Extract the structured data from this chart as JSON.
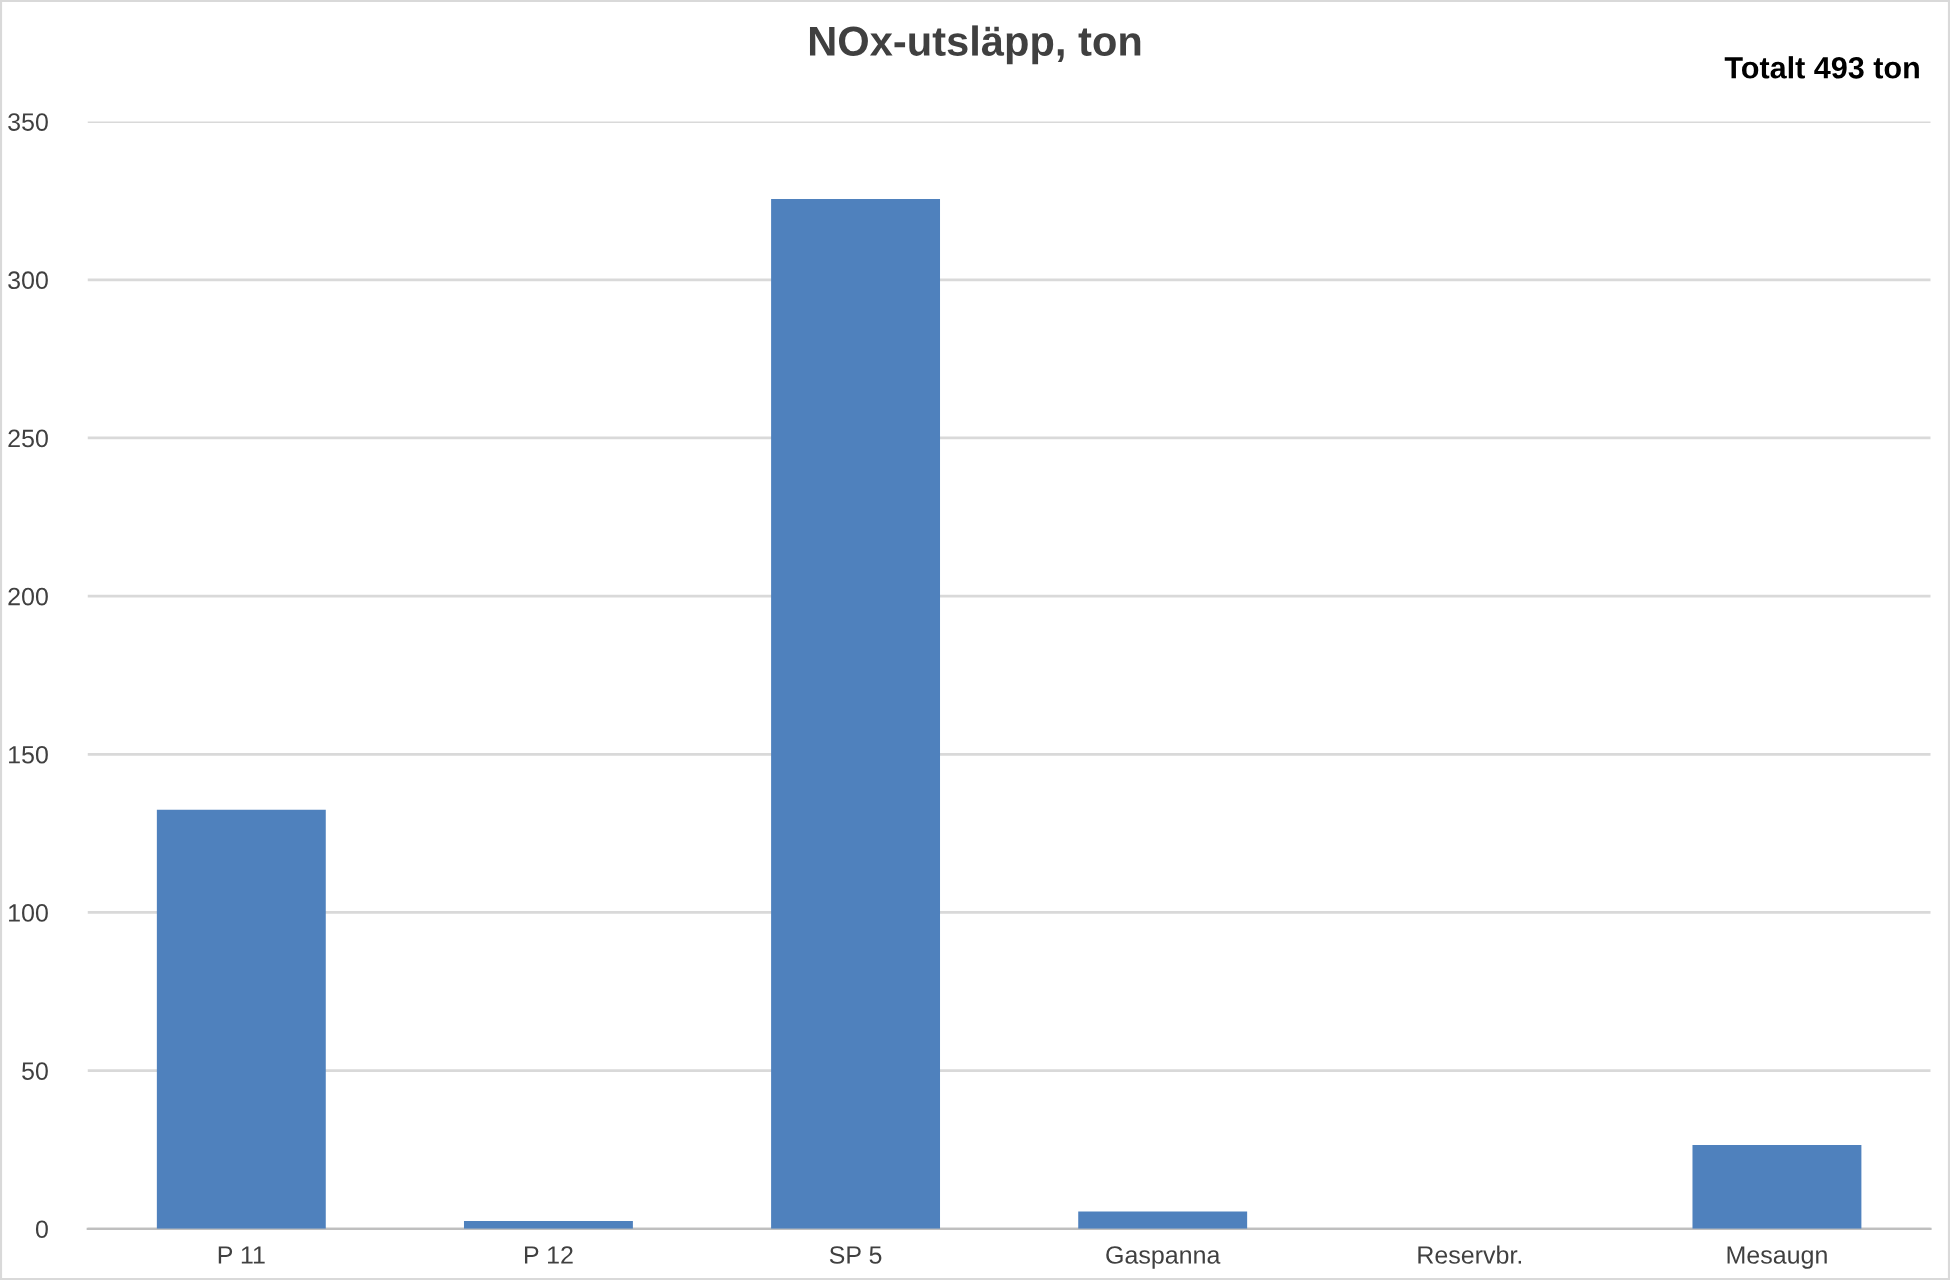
{
  "chart_data": {
    "type": "bar",
    "title": "NOx-utsläpp, ton",
    "annotations": [
      "Totalt 493 ton"
    ],
    "categories": [
      "P 11",
      "P 12",
      "SP 5",
      "Gaspanna",
      "Reservbr.",
      "Mesaugn"
    ],
    "values": [
      132.5,
      2.5,
      325.5,
      5.5,
      0,
      26.5
    ],
    "color": "#4f81bd",
    "ylim": [
      0,
      350
    ],
    "yticks": [
      0,
      50,
      100,
      150,
      200,
      250,
      300,
      350
    ],
    "grid": "y",
    "legend": false
  }
}
